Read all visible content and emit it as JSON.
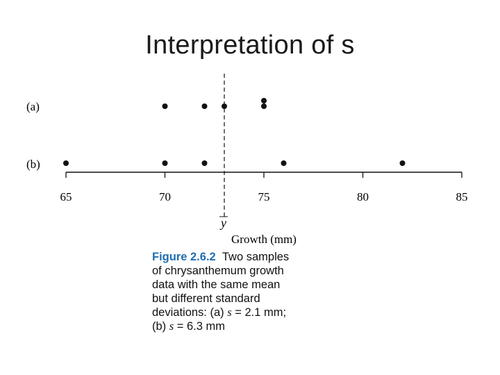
{
  "slide": {
    "title": "Interpretation of s"
  },
  "chart_data": {
    "type": "scatter",
    "xlabel": "Growth (mm)",
    "xlim": [
      65,
      85
    ],
    "xticks": [
      "65",
      "70",
      "75",
      "80",
      "85"
    ],
    "mean_label": "y",
    "mean_value": 73,
    "series": [
      {
        "name": "(a)",
        "points": [
          70,
          72,
          73,
          75,
          75
        ]
      },
      {
        "name": "(b)",
        "points": [
          65,
          70,
          72,
          76,
          82
        ]
      }
    ]
  },
  "caption": {
    "figure_label": "Figure 2.6.2",
    "line1_rest": "Two samples",
    "line2": "of chrysanthemum growth",
    "line3": "data with the same mean",
    "line4": "but different standard",
    "line5_prefix": "deviations: (a) ",
    "s_symbol": "s",
    "line5_value": " = 2.1 mm;",
    "line6_prefix": "(b) ",
    "line6_value": " = 6.3 mm"
  }
}
